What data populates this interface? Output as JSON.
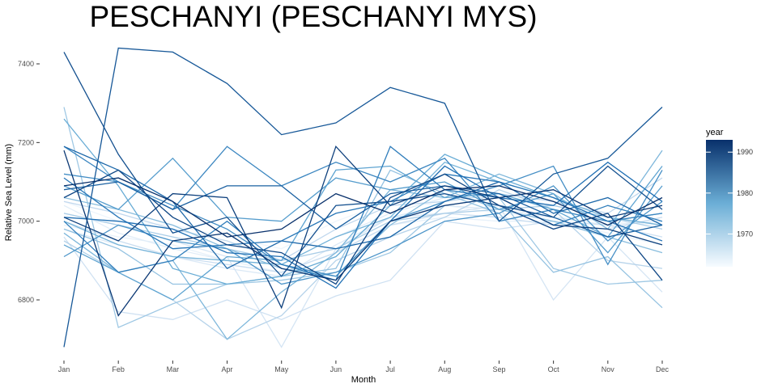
{
  "chart_data": {
    "type": "line",
    "title": "PESCHANYI (PESCHANYI MYS)",
    "xlabel": "Month",
    "ylabel": "Relative Sea Level (mm)",
    "categories": [
      "Jan",
      "Feb",
      "Mar",
      "Apr",
      "May",
      "Jun",
      "Jul",
      "Aug",
      "Sep",
      "Oct",
      "Nov",
      "Dec"
    ],
    "yticks": [
      6800,
      7000,
      7200,
      7400
    ],
    "ylim": [
      6670,
      7450
    ],
    "grid": false,
    "legend": {
      "title": "year",
      "position": "right",
      "ticks": [
        1970,
        1980,
        1990
      ],
      "range": [
        1962,
        1993
      ],
      "color_low": "#f7fbff",
      "color_high": "#08306b"
    },
    "series": [
      {
        "year": 1962,
        "values": [
          7050,
          7000,
          6990,
          6960,
          6930,
          7000,
          7050,
          7040,
          7020,
          7010,
          7000,
          6990
        ]
      },
      {
        "year": 1963,
        "values": [
          6990,
          6960,
          6940,
          6900,
          6870,
          6920,
          6990,
          7010,
          7000,
          7000,
          6970,
          6940
        ]
      },
      {
        "year": 1964,
        "values": [
          7040,
          6970,
          6930,
          6900,
          6890,
          6960,
          7020,
          7060,
          7060,
          7040,
          7010,
          6990
        ]
      },
      {
        "year": 1965,
        "values": [
          6980,
          6940,
          6910,
          6880,
          6860,
          6940,
          7010,
          7040,
          7030,
          7010,
          6990,
          7000
        ]
      },
      {
        "year": 1966,
        "values": [
          7020,
          6990,
          6950,
          6910,
          6680,
          6930,
          7010,
          7020,
          7040,
          6800,
          6960,
          6820
        ]
      },
      {
        "year": 1967,
        "values": [
          6960,
          6770,
          6750,
          6800,
          6750,
          6810,
          6850,
          7000,
          6980,
          7000,
          6990,
          6960
        ]
      },
      {
        "year": 1968,
        "values": [
          7000,
          6950,
          6910,
          6890,
          6870,
          6920,
          6990,
          7020,
          7010,
          6990,
          6980,
          7010
        ]
      },
      {
        "year": 1969,
        "values": [
          7050,
          7020,
          6980,
          6950,
          6900,
          6980,
          7040,
          7050,
          7070,
          7050,
          7020,
          7110
        ]
      },
      {
        "year": 1970,
        "values": [
          6950,
          6870,
          6800,
          6700,
          6760,
          6900,
          6960,
          7010,
          7080,
          7030,
          6900,
          6880
        ]
      },
      {
        "year": 1971,
        "values": [
          7020,
          6990,
          6960,
          6930,
          6900,
          6930,
          7000,
          7020,
          7030,
          7040,
          7010,
          6980
        ]
      },
      {
        "year": 1972,
        "values": [
          7290,
          6730,
          6790,
          6840,
          6850,
          6870,
          6920,
          7040,
          7060,
          6880,
          6840,
          6850
        ]
      },
      {
        "year": 1973,
        "values": [
          6980,
          6930,
          6840,
          6840,
          6860,
          6880,
          7130,
          7070,
          7020,
          6870,
          6910,
          6780
        ]
      },
      {
        "year": 1974,
        "values": [
          7060,
          7030,
          6990,
          6930,
          6880,
          6860,
          6990,
          7080,
          7030,
          7000,
          6960,
          6920
        ]
      },
      {
        "year": 1975,
        "values": [
          6970,
          6870,
          6900,
          6700,
          6820,
          6920,
          7080,
          7060,
          7120,
          7070,
          6980,
          7180
        ]
      },
      {
        "year": 1976,
        "values": [
          7000,
          6940,
          6910,
          6900,
          6890,
          6960,
          7010,
          7150,
          7100,
          7060,
          7010,
          6990
        ]
      },
      {
        "year": 1977,
        "values": [
          7260,
          7090,
          6880,
          6840,
          6860,
          6910,
          7040,
          7170,
          7110,
          7060,
          7000,
          7020
        ]
      },
      {
        "year": 1978,
        "values": [
          6940,
          6870,
          6800,
          6910,
          6900,
          7130,
          7140,
          7060,
          7070,
          7030,
          6960,
          7140
        ]
      },
      {
        "year": 1979,
        "values": [
          7090,
          7030,
          7160,
          7010,
          7000,
          7110,
          7080,
          7100,
          7030,
          7070,
          6920,
          7090
        ]
      },
      {
        "year": 1980,
        "values": [
          6910,
          6990,
          6950,
          6930,
          6840,
          6870,
          6930,
          7000,
          7020,
          7090,
          6950,
          7050
        ]
      },
      {
        "year": 1981,
        "values": [
          7120,
          7100,
          7040,
          6980,
          6890,
          6860,
          7000,
          7050,
          7090,
          7140,
          6890,
          7130
        ]
      },
      {
        "year": 1982,
        "values": [
          7190,
          7100,
          7030,
          7190,
          7090,
          7150,
          7100,
          7160,
          7000,
          7030,
          7000,
          7020
        ]
      },
      {
        "year": 1983,
        "values": [
          7000,
          6870,
          6900,
          7000,
          6890,
          6850,
          7190,
          7080,
          7060,
          6990,
          7040,
          7000
        ]
      },
      {
        "year": 1984,
        "values": [
          7110,
          7010,
          6930,
          6940,
          6950,
          7020,
          7050,
          7120,
          7100,
          7060,
          7000,
          6950
        ]
      },
      {
        "year": 1985,
        "values": [
          7010,
          7000,
          6980,
          6920,
          6910,
          6830,
          7000,
          7140,
          7060,
          7040,
          7150,
          7050
        ]
      },
      {
        "year": 1986,
        "values": [
          7190,
          7130,
          7050,
          6880,
          6950,
          6930,
          6960,
          7050,
          7100,
          7020,
          7060,
          6990
        ]
      },
      {
        "year": 1987,
        "values": [
          7080,
          7100,
          7030,
          7090,
          7090,
          6980,
          7070,
          7090,
          7070,
          7010,
          6960,
          6990
        ]
      },
      {
        "year": 1988,
        "values": [
          6680,
          7440,
          7430,
          7350,
          7220,
          7250,
          7340,
          7300,
          7000,
          7120,
          7160,
          7290
        ]
      },
      {
        "year": 1989,
        "values": [
          7430,
          7170,
          6970,
          7010,
          6860,
          7040,
          7050,
          7070,
          7040,
          7010,
          7140,
          7030
        ]
      },
      {
        "year": 1990,
        "values": [
          7060,
          7130,
          7010,
          6940,
          6920,
          6840,
          7060,
          7120,
          7040,
          6980,
          7020,
          6850
        ]
      },
      {
        "year": 1991,
        "values": [
          7010,
          6950,
          7070,
          7060,
          6780,
          7190,
          7040,
          7090,
          7060,
          6990,
          6980,
          6940
        ]
      },
      {
        "year": 1992,
        "values": [
          7180,
          6760,
          6950,
          6970,
          6880,
          6850,
          7000,
          7040,
          7060,
          7080,
          7010,
          7040
        ]
      },
      {
        "year": 1993,
        "values": [
          7090,
          7110,
          7050,
          6960,
          6980,
          7070,
          7020,
          7080,
          7090,
          7050,
          6990,
          7060
        ]
      }
    ]
  }
}
